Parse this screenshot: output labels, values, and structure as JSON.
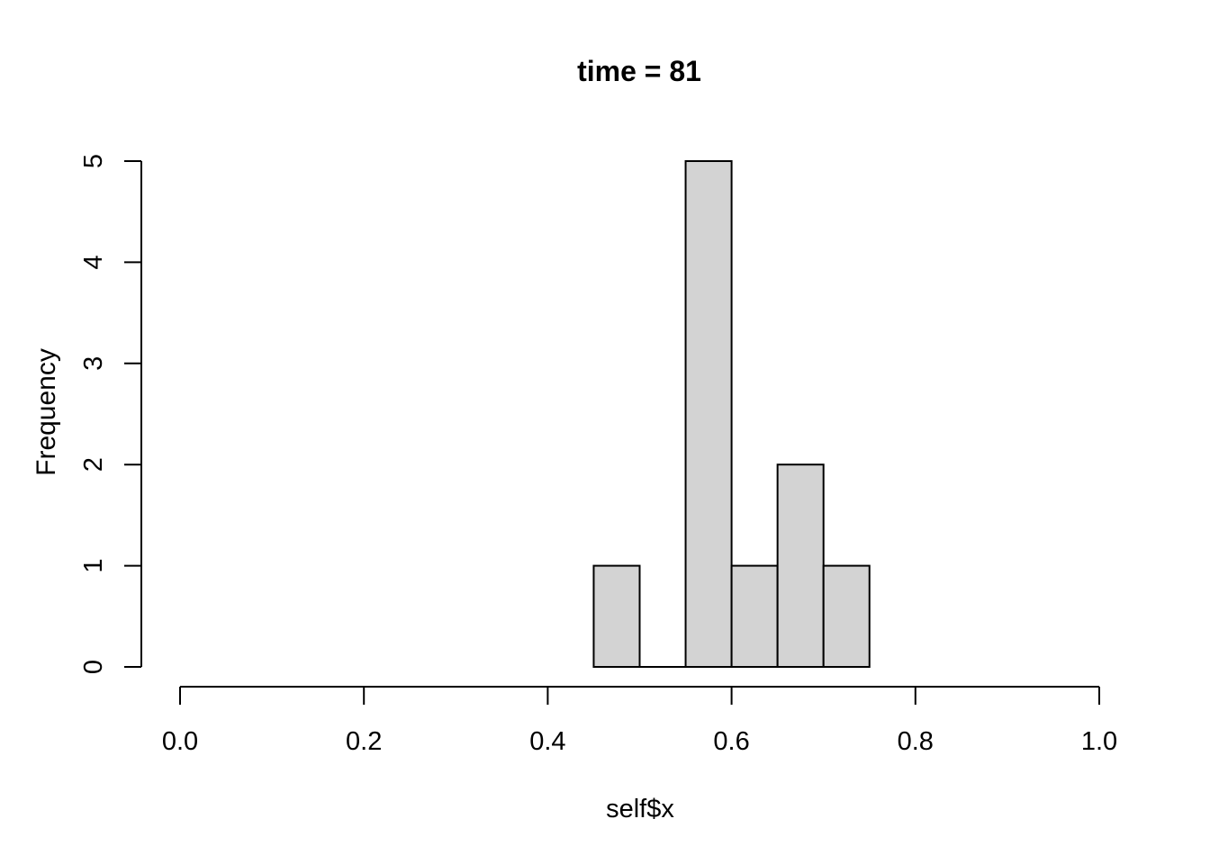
{
  "figure": {
    "background": "#ffffff",
    "text_color": "#000000"
  },
  "chart_data": {
    "type": "bar",
    "subtype": "histogram",
    "title": "time = 81",
    "xlabel": "self$x",
    "ylabel": "Frequency",
    "bin_breaks": [
      0.45,
      0.5,
      0.55,
      0.6,
      0.65,
      0.7,
      0.75
    ],
    "counts": [
      1,
      0,
      5,
      1,
      2,
      1
    ],
    "xlim": [
      0.0,
      1.0
    ],
    "ylim": [
      0,
      5
    ],
    "xticks": [
      0.0,
      0.2,
      0.4,
      0.6,
      0.8,
      1.0
    ],
    "xtick_labels": [
      "0.0",
      "0.2",
      "0.4",
      "0.6",
      "0.8",
      "1.0"
    ],
    "yticks": [
      0,
      1,
      2,
      3,
      4,
      5
    ],
    "ytick_labels": [
      "0",
      "1",
      "2",
      "3",
      "4",
      "5"
    ],
    "bar_fill": "#d3d3d3",
    "bar_border": "#000000",
    "axis_color": "#000000",
    "grid": false,
    "legend": false
  }
}
